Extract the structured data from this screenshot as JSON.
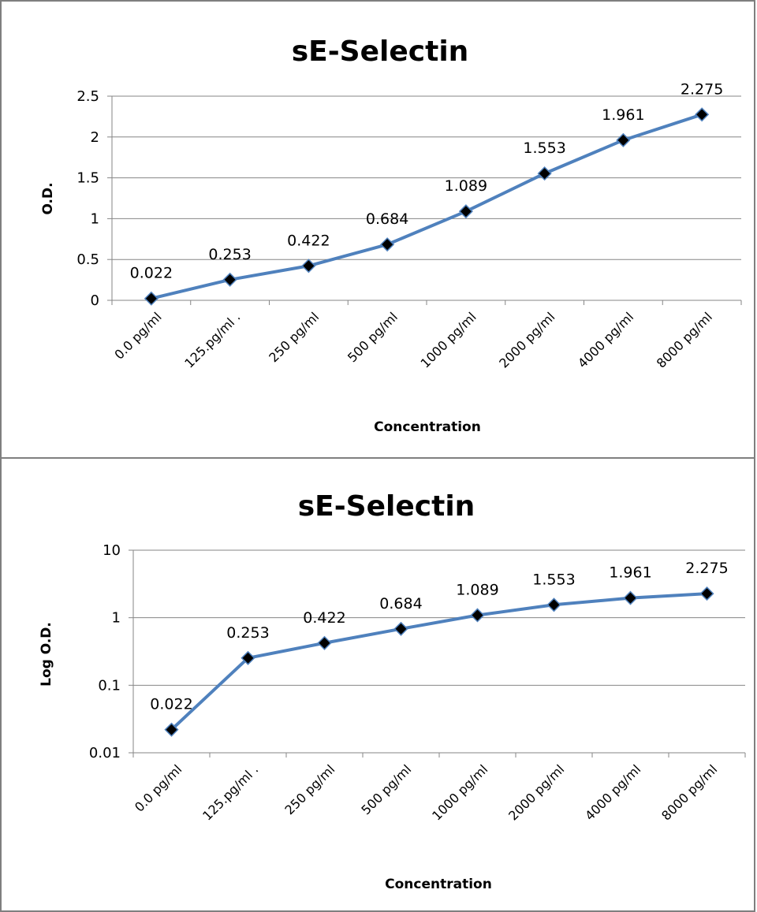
{
  "chart_data": [
    {
      "type": "line",
      "title": "sE-Selectin",
      "xlabel": "Concentration",
      "ylabel": "O.D.",
      "categories": [
        "0.0 pg/ml",
        "125.pg/ml .",
        "250 pg/ml",
        "500 pg/ml",
        "1000 pg/ml",
        "2000 pg/ml",
        "4000 pg/ml",
        "8000 pg/ml"
      ],
      "series": [
        {
          "values": [
            0.022,
            0.253,
            0.422,
            0.684,
            1.089,
            1.553,
            1.961,
            2.275
          ],
          "labels": [
            "0.022",
            "0.253",
            "0.422",
            "0.684",
            "1.089",
            "1.553",
            "1.961",
            "2.275"
          ]
        }
      ],
      "ylim": [
        0,
        2.5
      ],
      "yticks": [
        "0",
        "0.5",
        "1",
        "1.5",
        "2",
        "2.5"
      ],
      "yscale": "linear",
      "grid": true,
      "line_color": "#4f81bd",
      "marker": "black-diamond"
    },
    {
      "type": "line",
      "title": "sE-Selectin",
      "xlabel": "Concentration",
      "ylabel": "Log O.D.",
      "categories": [
        "0.0 pg/ml",
        "125.pg/ml .",
        "250 pg/ml",
        "500 pg/ml",
        "1000 pg/ml",
        "2000 pg/ml",
        "4000 pg/ml",
        "8000 pg/ml"
      ],
      "series": [
        {
          "values": [
            0.022,
            0.253,
            0.422,
            0.684,
            1.089,
            1.553,
            1.961,
            2.275
          ],
          "labels": [
            "0.022",
            "0.253",
            "0.422",
            "0.684",
            "1.089",
            "1.553",
            "1.961",
            "2.275"
          ]
        }
      ],
      "ylim": [
        0.01,
        10
      ],
      "yticks": [
        "0.01",
        "0.1",
        "1",
        "10"
      ],
      "yscale": "log",
      "grid": true,
      "line_color": "#4f81bd",
      "marker": "black-diamond"
    }
  ]
}
